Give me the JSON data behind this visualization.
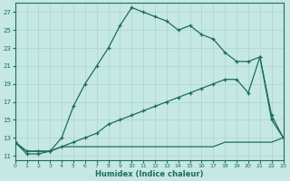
{
  "xlabel": "Humidex (Indice chaleur)",
  "xlim": [
    0,
    23
  ],
  "ylim": [
    10.5,
    28
  ],
  "yticks": [
    11,
    13,
    15,
    17,
    19,
    21,
    23,
    25,
    27
  ],
  "xticks": [
    0,
    1,
    2,
    3,
    4,
    5,
    6,
    7,
    8,
    9,
    10,
    11,
    12,
    13,
    14,
    15,
    16,
    17,
    18,
    19,
    20,
    21,
    22,
    23
  ],
  "bg_color": "#c5e8e3",
  "line_color": "#1d6b60",
  "grid_color": "#aad4cc",
  "curve1_x": [
    0,
    1,
    2,
    3,
    4,
    5,
    6,
    7,
    8,
    9,
    10,
    11,
    12,
    13,
    14,
    15,
    16,
    17,
    18,
    19,
    20,
    21,
    22,
    23
  ],
  "curve1_y": [
    12.5,
    11.2,
    11.2,
    11.5,
    13.0,
    16.5,
    19.0,
    21.0,
    23.0,
    25.5,
    27.5,
    27.0,
    26.5,
    26.0,
    25.0,
    25.5,
    24.5,
    24.0,
    22.5,
    21.5,
    21.5,
    22.0,
    15.5,
    13.0
  ],
  "curve2_x": [
    0,
    1,
    2,
    3,
    4,
    5,
    6,
    7,
    8,
    9,
    10,
    11,
    12,
    13,
    14,
    15,
    16,
    17,
    18,
    19,
    20,
    21,
    22,
    23
  ],
  "curve2_y": [
    12.5,
    11.5,
    11.5,
    11.5,
    12.0,
    12.5,
    13.0,
    13.5,
    14.5,
    15.0,
    15.5,
    16.0,
    16.5,
    17.0,
    17.5,
    18.0,
    18.5,
    19.0,
    19.5,
    19.5,
    18.0,
    22.0,
    15.0,
    13.0
  ],
  "curve3_x": [
    0,
    1,
    2,
    3,
    4,
    5,
    6,
    7,
    8,
    9,
    10,
    11,
    12,
    13,
    14,
    15,
    16,
    17,
    18,
    19,
    20,
    21,
    22,
    23
  ],
  "curve3_y": [
    12.5,
    11.5,
    11.5,
    11.5,
    12.0,
    12.0,
    12.0,
    12.0,
    12.0,
    12.0,
    12.0,
    12.0,
    12.0,
    12.0,
    12.0,
    12.0,
    12.0,
    12.0,
    12.5,
    12.5,
    12.5,
    12.5,
    12.5,
    13.0
  ]
}
